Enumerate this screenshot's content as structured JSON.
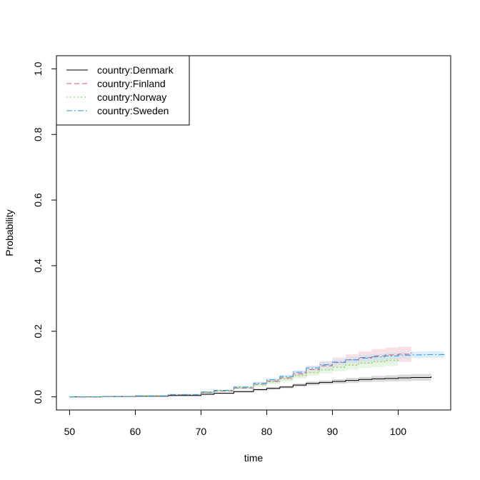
{
  "chart_data": {
    "type": "line",
    "title": "",
    "xlabel": "time",
    "ylabel": "Probability",
    "xlim": [
      48,
      108
    ],
    "ylim": [
      -0.04,
      1.04
    ],
    "x_ticks": [
      50,
      60,
      70,
      80,
      90,
      100
    ],
    "y_ticks": [
      0.0,
      0.2,
      0.4,
      0.6,
      0.8,
      1.0
    ],
    "y_tick_labels": [
      "0.0",
      "0.2",
      "0.4",
      "0.6",
      "0.8",
      "1.0"
    ],
    "x_tick_labels": [
      "50",
      "60",
      "70",
      "80",
      "90",
      "100"
    ],
    "legend_position": "top-left",
    "grid": false,
    "series": [
      {
        "name": "country:Denmark",
        "color": "#000000",
        "band_color": "#bebebe",
        "dash": "solid",
        "x": [
          50,
          55,
          60,
          65,
          70,
          72,
          75,
          78,
          80,
          82,
          84,
          86,
          88,
          90,
          92,
          94,
          96,
          98,
          100,
          102,
          105
        ],
        "y": [
          0,
          0.001,
          0.002,
          0.004,
          0.008,
          0.011,
          0.016,
          0.022,
          0.026,
          0.03,
          0.036,
          0.041,
          0.044,
          0.047,
          0.05,
          0.053,
          0.055,
          0.056,
          0.058,
          0.059,
          0.062
        ],
        "lo": [
          0,
          0.0005,
          0.0015,
          0.003,
          0.006,
          0.009,
          0.013,
          0.018,
          0.022,
          0.026,
          0.031,
          0.035,
          0.038,
          0.04,
          0.042,
          0.045,
          0.046,
          0.047,
          0.048,
          0.049,
          0.05
        ],
        "hi": [
          0,
          0.0015,
          0.0025,
          0.005,
          0.01,
          0.013,
          0.019,
          0.026,
          0.03,
          0.034,
          0.041,
          0.047,
          0.05,
          0.054,
          0.058,
          0.061,
          0.064,
          0.066,
          0.068,
          0.07,
          0.073
        ]
      },
      {
        "name": "country:Finland",
        "color": "#df536b",
        "band_color": "#f6c7d0",
        "dash": "7,4",
        "x": [
          50,
          55,
          60,
          65,
          70,
          72,
          75,
          78,
          80,
          82,
          84,
          86,
          88,
          90,
          92,
          94,
          96,
          98,
          100,
          102
        ],
        "y": [
          0,
          0.001,
          0.003,
          0.006,
          0.013,
          0.018,
          0.027,
          0.038,
          0.048,
          0.058,
          0.07,
          0.083,
          0.095,
          0.105,
          0.113,
          0.12,
          0.125,
          0.128,
          0.13,
          0.135
        ],
        "lo": [
          0,
          0.0005,
          0.002,
          0.004,
          0.01,
          0.014,
          0.022,
          0.032,
          0.041,
          0.05,
          0.061,
          0.072,
          0.082,
          0.09,
          0.096,
          0.101,
          0.104,
          0.106,
          0.107,
          0.11
        ],
        "hi": [
          0,
          0.0015,
          0.004,
          0.008,
          0.016,
          0.022,
          0.032,
          0.044,
          0.055,
          0.066,
          0.079,
          0.094,
          0.108,
          0.12,
          0.13,
          0.139,
          0.146,
          0.15,
          0.153,
          0.158
        ]
      },
      {
        "name": "country:Norway",
        "color": "#61d04f",
        "band_color": "#d4f1cf",
        "dash": "2,3",
        "x": [
          50,
          55,
          60,
          65,
          70,
          72,
          75,
          78,
          80,
          82,
          84,
          86,
          88,
          90,
          92,
          94,
          96,
          98,
          100
        ],
        "y": [
          0,
          0.001,
          0.003,
          0.007,
          0.014,
          0.019,
          0.028,
          0.038,
          0.046,
          0.055,
          0.065,
          0.074,
          0.082,
          0.09,
          0.097,
          0.103,
          0.108,
          0.112,
          0.115
        ],
        "lo": [
          0,
          0.0005,
          0.002,
          0.005,
          0.011,
          0.015,
          0.023,
          0.032,
          0.039,
          0.047,
          0.056,
          0.064,
          0.071,
          0.078,
          0.083,
          0.088,
          0.091,
          0.094,
          0.096
        ],
        "hi": [
          0,
          0.0015,
          0.004,
          0.009,
          0.017,
          0.023,
          0.033,
          0.044,
          0.053,
          0.063,
          0.074,
          0.084,
          0.093,
          0.102,
          0.11,
          0.118,
          0.124,
          0.129,
          0.134
        ]
      },
      {
        "name": "country:Sweden",
        "color": "#2297e6",
        "band_color": "#c3e2f7",
        "dash": "8,3,2,3",
        "x": [
          50,
          55,
          60,
          65,
          70,
          72,
          75,
          78,
          80,
          82,
          84,
          86,
          88,
          90,
          92,
          94,
          96,
          98,
          100,
          102,
          104,
          107
        ],
        "y": [
          0,
          0.001,
          0.003,
          0.007,
          0.015,
          0.02,
          0.03,
          0.042,
          0.052,
          0.062,
          0.075,
          0.088,
          0.098,
          0.106,
          0.113,
          0.118,
          0.122,
          0.125,
          0.127,
          0.128,
          0.129,
          0.13
        ],
        "lo": [
          0,
          0.0007,
          0.0025,
          0.006,
          0.013,
          0.018,
          0.027,
          0.038,
          0.048,
          0.057,
          0.069,
          0.081,
          0.09,
          0.098,
          0.104,
          0.108,
          0.112,
          0.115,
          0.117,
          0.118,
          0.119,
          0.12
        ],
        "hi": [
          0,
          0.0013,
          0.0035,
          0.008,
          0.017,
          0.022,
          0.033,
          0.046,
          0.056,
          0.067,
          0.081,
          0.095,
          0.106,
          0.114,
          0.122,
          0.128,
          0.132,
          0.135,
          0.137,
          0.138,
          0.139,
          0.14
        ]
      }
    ]
  }
}
